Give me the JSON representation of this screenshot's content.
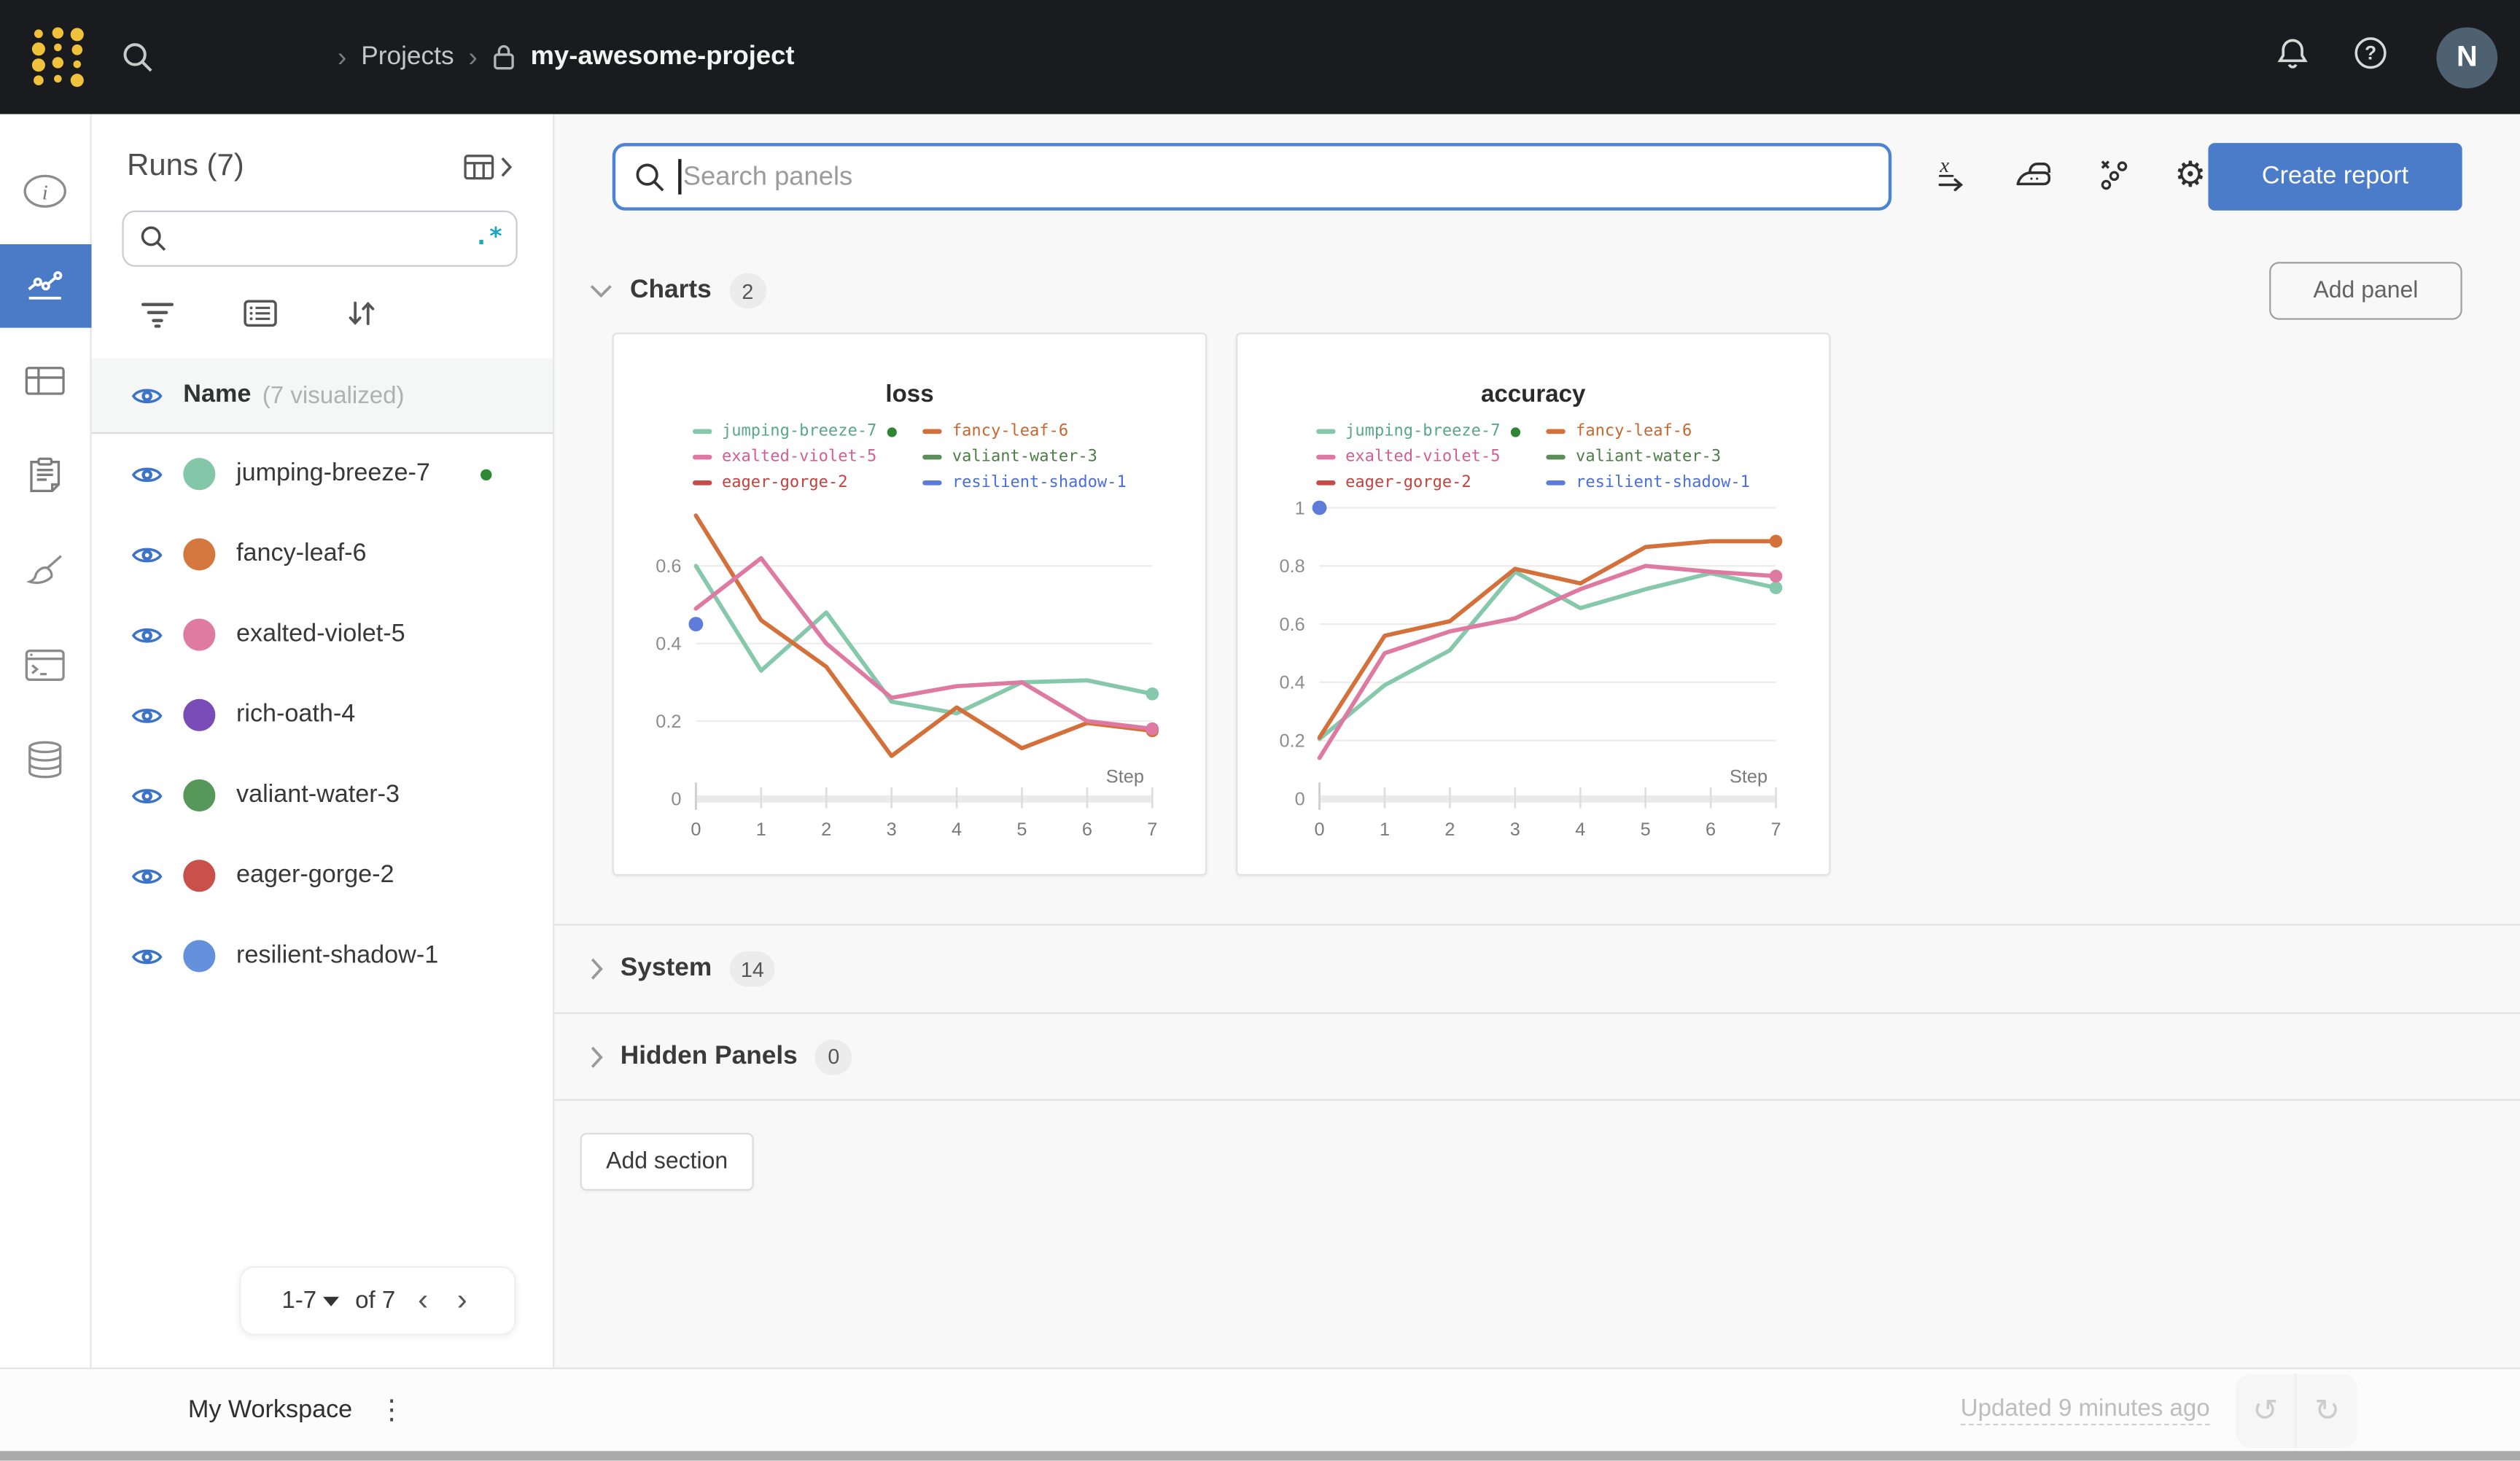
{
  "header": {
    "breadcrumb": {
      "separator": "›",
      "projects": "Projects",
      "project": "my-awesome-project"
    },
    "avatar_initial": "N"
  },
  "runs_panel": {
    "title": "Runs (7)",
    "search_placeholder": "",
    "regex_glyph": ".*",
    "col_header": {
      "name": "Name",
      "visualized": "(7 visualized)"
    },
    "runs": [
      {
        "name": "jumping-breeze-7",
        "color": "#84c7a8",
        "running": true
      },
      {
        "name": "fancy-leaf-6",
        "color": "#d5783f",
        "running": false
      },
      {
        "name": "exalted-violet-5",
        "color": "#df7ba1",
        "running": false
      },
      {
        "name": "rich-oath-4",
        "color": "#7a4cb8",
        "running": false
      },
      {
        "name": "valiant-water-3",
        "color": "#56985a",
        "running": false
      },
      {
        "name": "eager-gorge-2",
        "color": "#c9504b",
        "running": false
      },
      {
        "name": "resilient-shadow-1",
        "color": "#6590dc",
        "running": false
      }
    ],
    "pagination": {
      "range": "1-7",
      "of": "of 7",
      "prev": "‹",
      "next": "›"
    }
  },
  "toolbar": {
    "search_placeholder": "Search panels",
    "create_report_label": "Create report"
  },
  "sections": {
    "charts": {
      "label": "Charts",
      "count": "2"
    },
    "system": {
      "label": "System",
      "count": "14"
    },
    "hidden": {
      "label": "Hidden Panels",
      "count": "0"
    },
    "add_panel_label": "Add panel",
    "add_section_label": "Add section"
  },
  "footer": {
    "workspace": "My Workspace",
    "updated": "Updated 9 minutes ago",
    "undo_glyph": "↺",
    "redo_glyph": "↻"
  },
  "colors": {
    "accent_blue": "#4a7cca",
    "active_nav": "#4b7ac7",
    "eye_blue": "#3b73c9",
    "running_green": "#2d8a33",
    "regex_teal": "#18a8c4"
  },
  "chart_data": [
    {
      "type": "line",
      "title": "loss",
      "xlabel": "Step",
      "x": [
        0,
        1,
        2,
        3,
        4,
        5,
        6,
        7
      ],
      "xticks": [
        0,
        1,
        2,
        3,
        4,
        5,
        6,
        7
      ],
      "ylim": [
        0,
        0.75
      ],
      "yticks": [
        0,
        0.2,
        0.4,
        0.6
      ],
      "grid": true,
      "legend_position": "top",
      "series": [
        {
          "name": "jumping-breeze-7",
          "color": "#85c8ac",
          "text_color": "#58a78c",
          "running": true,
          "end_dot": true,
          "values": [
            0.6,
            0.33,
            0.48,
            0.25,
            0.22,
            0.3,
            0.305,
            0.27
          ]
        },
        {
          "name": "fancy-leaf-6",
          "color": "#d4713a",
          "text_color": "#c8662f",
          "running": false,
          "end_dot": true,
          "values": [
            0.73,
            0.46,
            0.34,
            0.11,
            0.235,
            0.13,
            0.195,
            0.175
          ]
        },
        {
          "name": "exalted-violet-5",
          "color": "#de7aa2",
          "text_color": "#d45e92",
          "running": false,
          "end_dot": true,
          "values": [
            0.49,
            0.62,
            0.4,
            0.26,
            0.29,
            0.3,
            0.2,
            0.18
          ]
        },
        {
          "name": "valiant-water-3",
          "color": "#5c8f57",
          "text_color": "#4c7d47",
          "running": false,
          "values": null
        },
        {
          "name": "eager-gorge-2",
          "color": "#c94b47",
          "text_color": "#c4423e",
          "running": false,
          "values": null
        },
        {
          "name": "resilient-shadow-1",
          "color": "#5b7bdb",
          "text_color": "#4a6edb",
          "running": false,
          "values": null,
          "point": [
            0,
            0.45
          ]
        }
      ]
    },
    {
      "type": "line",
      "title": "accuracy",
      "xlabel": "Step",
      "x": [
        0,
        1,
        2,
        3,
        4,
        5,
        6,
        7
      ],
      "xticks": [
        0,
        1,
        2,
        3,
        4,
        5,
        6,
        7
      ],
      "ylim": [
        0,
        1.0
      ],
      "yticks": [
        0,
        0.2,
        0.4,
        0.6,
        0.8,
        1
      ],
      "grid": true,
      "legend_position": "top",
      "series": [
        {
          "name": "jumping-breeze-7",
          "color": "#85c8ac",
          "text_color": "#58a78c",
          "running": true,
          "end_dot": true,
          "values": [
            0.205,
            0.39,
            0.51,
            0.78,
            0.655,
            0.72,
            0.775,
            0.725
          ]
        },
        {
          "name": "fancy-leaf-6",
          "color": "#d4713a",
          "text_color": "#c8662f",
          "running": false,
          "end_dot": true,
          "values": [
            0.21,
            0.56,
            0.61,
            0.79,
            0.74,
            0.865,
            0.885,
            0.885
          ]
        },
        {
          "name": "exalted-violet-5",
          "color": "#de7aa2",
          "text_color": "#d45e92",
          "running": false,
          "end_dot": true,
          "values": [
            0.14,
            0.5,
            0.575,
            0.62,
            0.72,
            0.8,
            0.78,
            0.765
          ]
        },
        {
          "name": "valiant-water-3",
          "color": "#5c8f57",
          "text_color": "#4c7d47",
          "running": false,
          "values": null
        },
        {
          "name": "eager-gorge-2",
          "color": "#c94b47",
          "text_color": "#c4423e",
          "running": false,
          "values": null
        },
        {
          "name": "resilient-shadow-1",
          "color": "#5b7bdb",
          "text_color": "#4a6edb",
          "running": false,
          "values": null,
          "point": [
            0,
            1.0
          ]
        }
      ]
    }
  ]
}
